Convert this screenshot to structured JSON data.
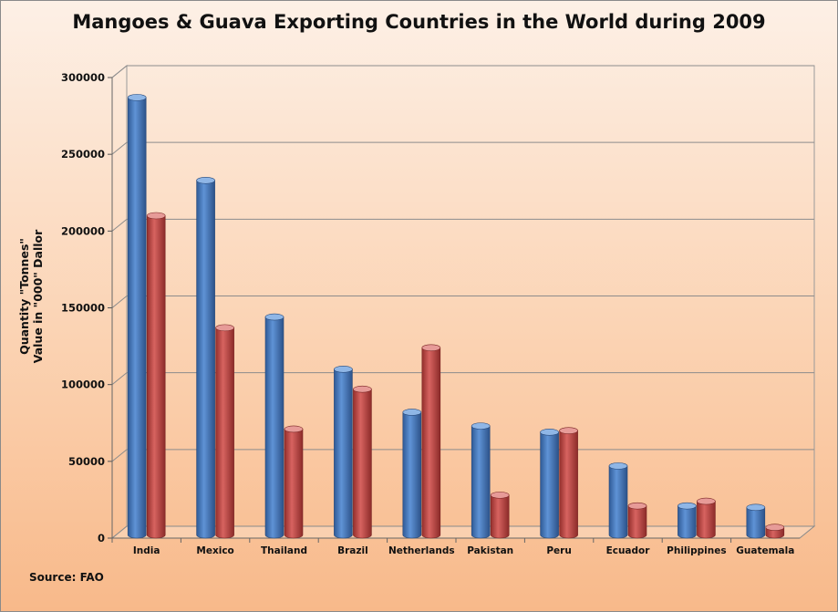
{
  "chart_data": {
    "type": "bar",
    "title": "Mangoes & Guava Exporting Countries in the World during 2009",
    "ylabel_lines": [
      "Quantity \"Tonnes\"",
      "Value in \"000\" Dallor"
    ],
    "source": "Source: FAO",
    "ylim": [
      0,
      300000
    ],
    "yticks": [
      0,
      50000,
      100000,
      150000,
      200000,
      250000,
      300000
    ],
    "grid": true,
    "legend": "none",
    "categories": [
      "India",
      "Mexico",
      "Thailand",
      "Brazil",
      "Netherlands",
      "Pakistan",
      "Peru",
      "Ecuador",
      "Philippines",
      "Guatemala"
    ],
    "series": [
      {
        "color": "#4f81bd",
        "values": [
          287000,
          233000,
          144000,
          110000,
          82000,
          73000,
          69000,
          47000,
          21000,
          20000
        ]
      },
      {
        "color": "#c0504d",
        "values": [
          210000,
          137000,
          71000,
          97000,
          124000,
          28000,
          70000,
          21000,
          24000,
          7000
        ]
      }
    ]
  }
}
